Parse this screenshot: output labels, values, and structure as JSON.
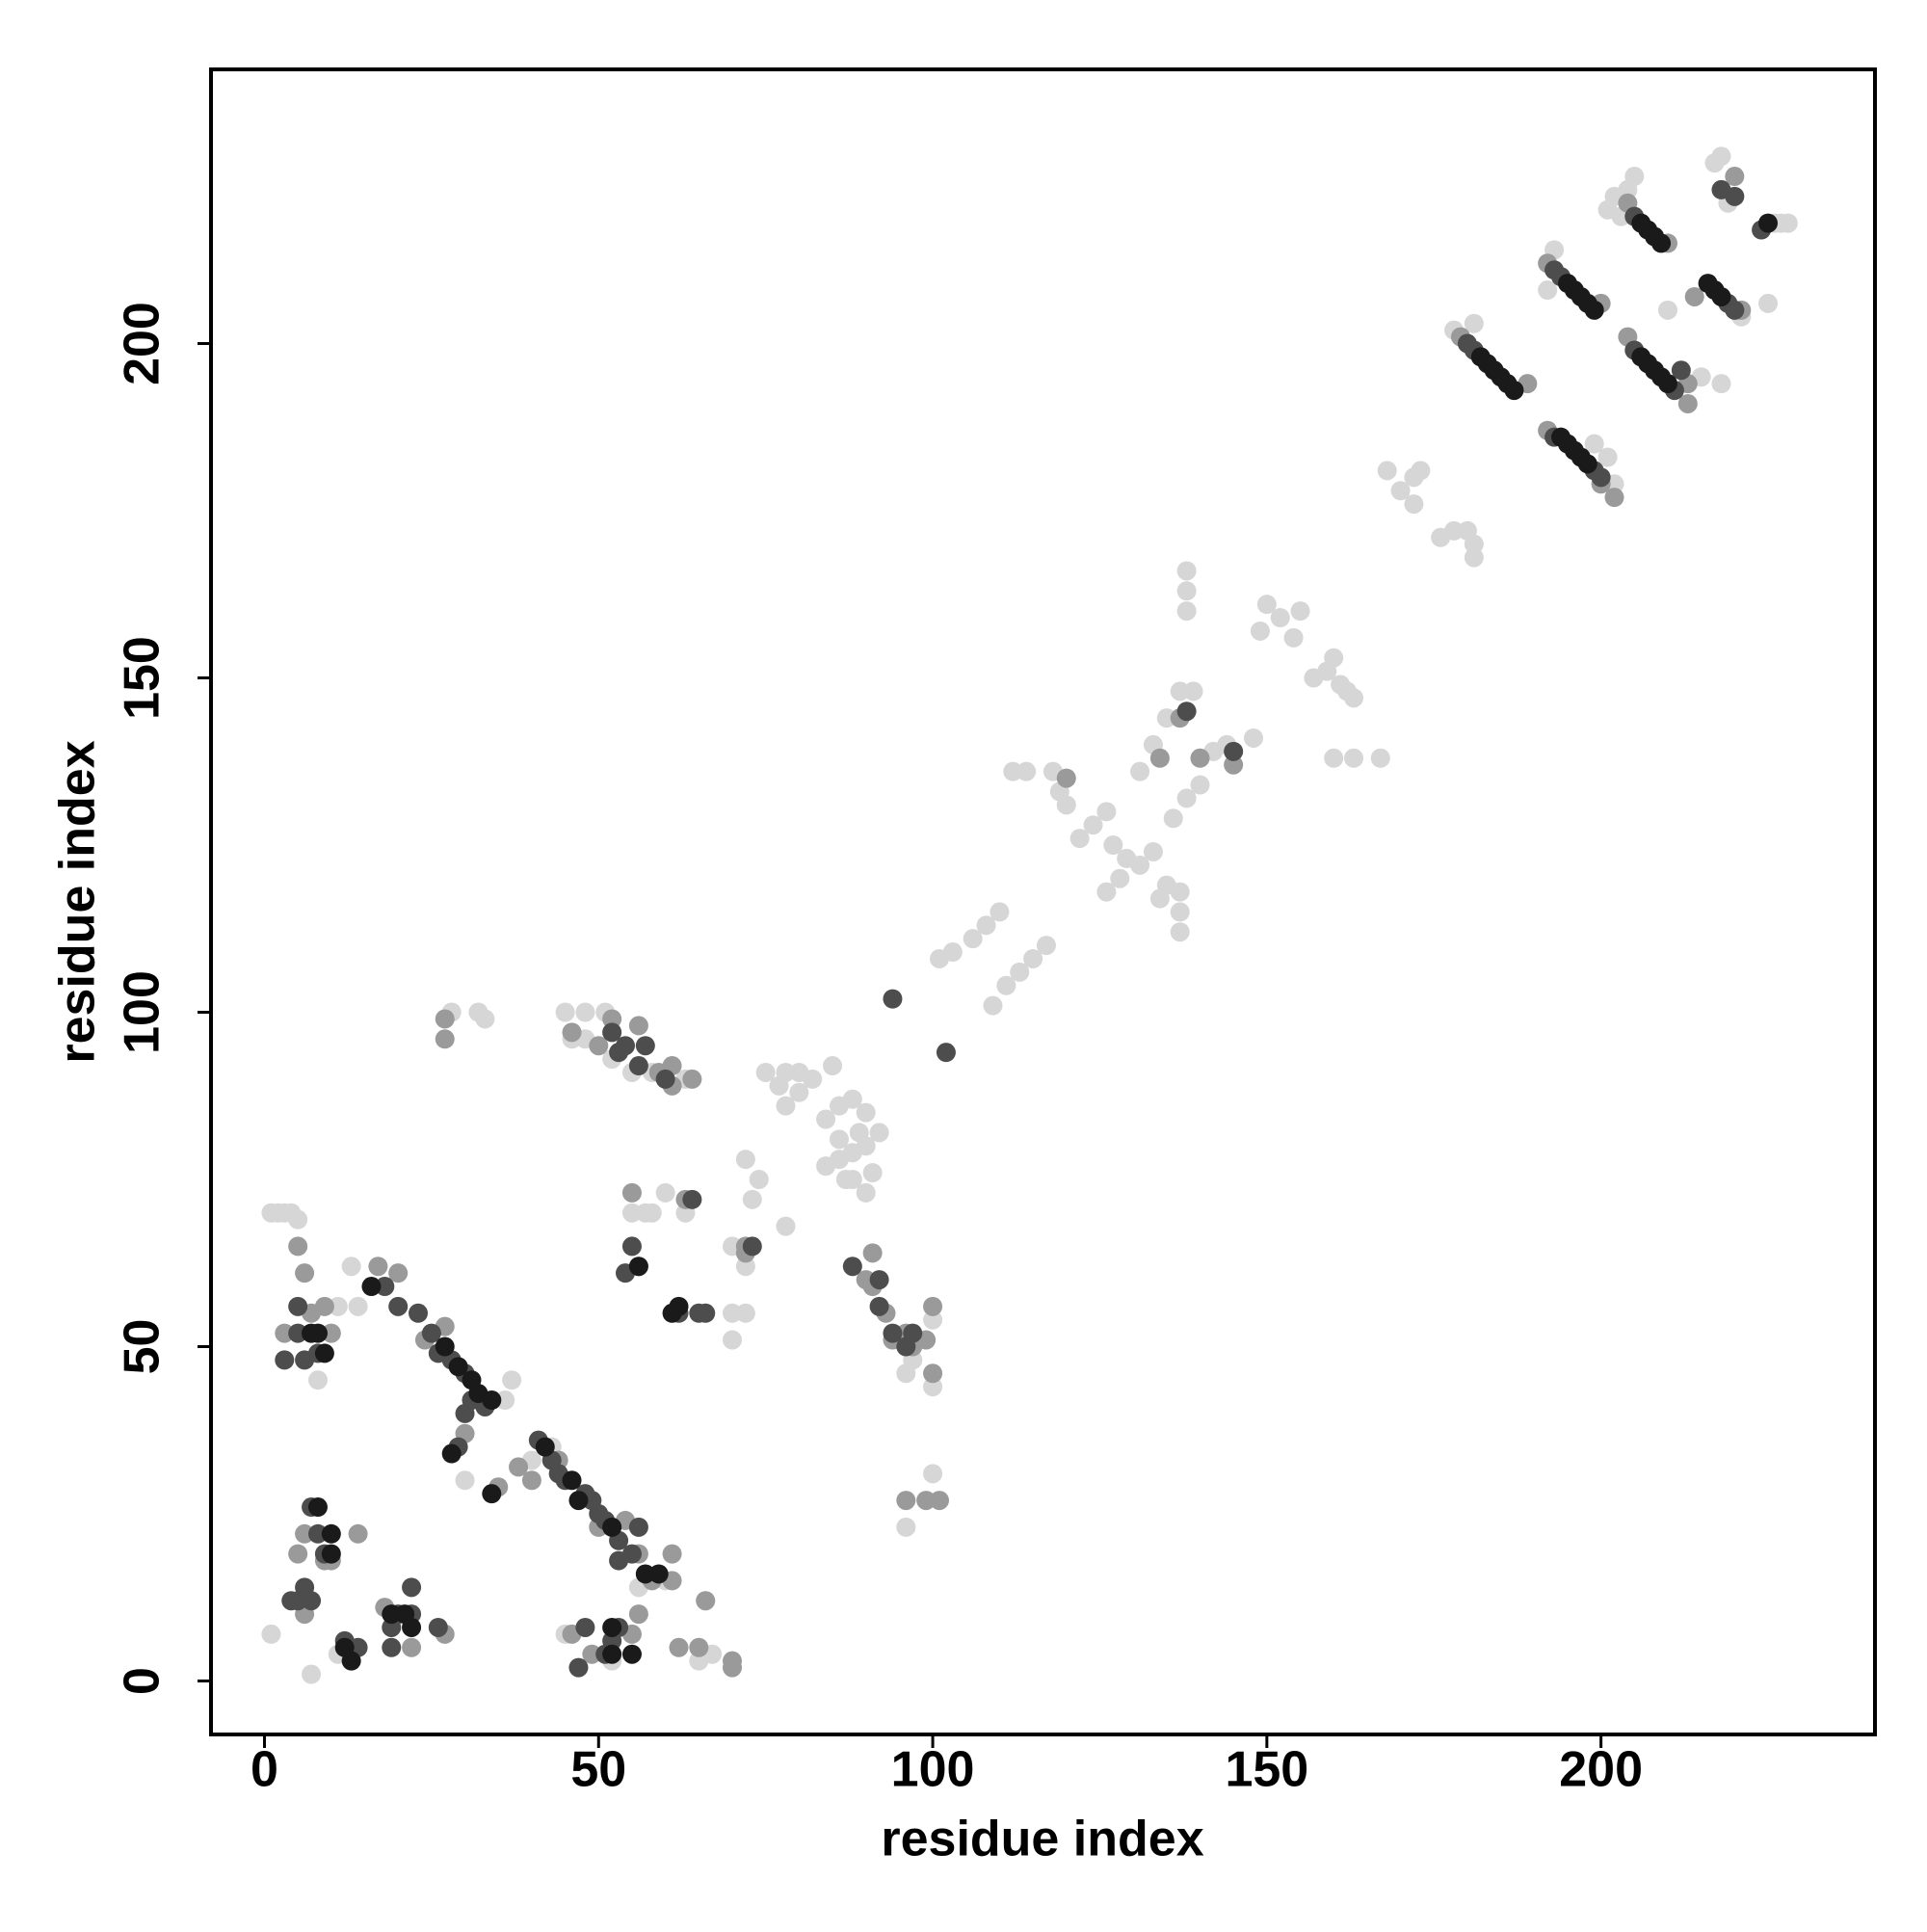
{
  "chart_data": {
    "type": "scatter",
    "x_label": "residue index",
    "y_label": "residue index",
    "xlim": [
      -8,
      241
    ],
    "ylim": [
      -8,
      241
    ],
    "xticks": [
      0,
      50,
      100,
      150,
      200
    ],
    "yticks": [
      0,
      50,
      100,
      150,
      200
    ],
    "grid": false,
    "series": [
      {
        "color": "#d6d6d6",
        "x": [
          1,
          7,
          1,
          2,
          3,
          4,
          5,
          13,
          14,
          11,
          8,
          11,
          30,
          36,
          37,
          40,
          43,
          45,
          52,
          56,
          60,
          57,
          58,
          65,
          67,
          66,
          70,
          70,
          72,
          72,
          72,
          73,
          75,
          77,
          78,
          80,
          82,
          85,
          80,
          78,
          84,
          86,
          88,
          90,
          84,
          86,
          88,
          88,
          90,
          87,
          86,
          89,
          90,
          91,
          92,
          74,
          78,
          70,
          63,
          60,
          55,
          48,
          48,
          51,
          52,
          28,
          32,
          33,
          45,
          46,
          55,
          58,
          63,
          96,
          97,
          100,
          96,
          100,
          100,
          101,
          103,
          106,
          108,
          110,
          109,
          111,
          113,
          115,
          117,
          112,
          114,
          118,
          119,
          120,
          122,
          124,
          126,
          127,
          129,
          131,
          133,
          135,
          137,
          137,
          137,
          134,
          126,
          128,
          131,
          133,
          135,
          137,
          139,
          136,
          138,
          140,
          138,
          138,
          138,
          142,
          144,
          148,
          149,
          150,
          152,
          154,
          155,
          157,
          159,
          160,
          161,
          162,
          163,
          160,
          163,
          167,
          168,
          170,
          172,
          173,
          172,
          176,
          178,
          180,
          181,
          181,
          178,
          181,
          192,
          193,
          201,
          202,
          203,
          204,
          205,
          217,
          218,
          219,
          226,
          227,
          228,
          225,
          221,
          218,
          215,
          210,
          199,
          201,
          202
        ],
        "y": [
          7,
          1,
          70,
          70,
          70,
          70,
          69,
          62,
          56,
          4,
          45,
          56,
          30,
          42,
          45,
          33,
          35,
          7,
          3,
          14,
          15,
          70,
          70,
          3,
          4,
          12,
          55,
          51,
          62,
          78,
          55,
          72,
          91,
          89,
          86,
          88,
          90,
          92,
          91,
          91,
          84,
          86,
          87,
          85,
          77,
          78,
          79,
          75,
          73,
          75,
          81,
          82,
          80,
          76,
          82,
          75,
          68,
          65,
          70,
          73,
          70,
          96,
          100,
          100,
          93,
          100,
          100,
          99,
          100,
          96,
          91,
          91,
          90,
          46,
          48,
          44,
          23,
          31,
          54,
          108,
          109,
          111,
          113,
          115,
          101,
          104,
          106,
          108,
          110,
          136,
          136,
          136,
          133,
          131,
          126,
          128,
          130,
          125,
          123,
          122,
          124,
          119,
          118,
          112,
          115,
          117,
          118,
          120,
          136,
          140,
          144,
          148,
          148,
          129,
          132,
          134,
          160,
          163,
          166,
          139,
          140,
          141,
          157,
          161,
          159,
          156,
          160,
          150,
          151,
          153,
          149,
          148,
          147,
          138,
          138,
          138,
          181,
          178,
          180,
          181,
          176,
          171,
          172,
          172,
          170,
          168,
          202,
          203,
          208,
          214,
          220,
          222,
          219,
          223,
          225,
          227,
          228,
          221,
          218,
          218,
          218,
          206,
          204,
          194,
          195,
          205,
          185,
          183,
          179
        ]
      },
      {
        "color": "#9a9a9a",
        "x": [
          5,
          6,
          7,
          3,
          9,
          10,
          6,
          5,
          10,
          14,
          9,
          6,
          18,
          22,
          27,
          24,
          27,
          20,
          17,
          30,
          35,
          38,
          40,
          44,
          50,
          54,
          56,
          58,
          61,
          61,
          62,
          65,
          66,
          46,
          49,
          55,
          56,
          70,
          70,
          27,
          27,
          46,
          50,
          52,
          56,
          59,
          61,
          61,
          64,
          55,
          56,
          63,
          72,
          72,
          91,
          90,
          91,
          93,
          94,
          96,
          97,
          100,
          99,
          100,
          96,
          99,
          101,
          120,
          140,
          145,
          137,
          134,
          179,
          189,
          192,
          200,
          204,
          210,
          204,
          213,
          214,
          221,
          220,
          213,
          202,
          192,
          200
        ],
        "y": [
          65,
          61,
          55,
          52,
          56,
          52,
          22,
          19,
          18,
          22,
          18,
          10,
          11,
          5,
          7,
          51,
          53,
          61,
          62,
          37,
          29,
          32,
          30,
          33,
          23,
          24,
          19,
          15,
          19,
          15,
          5,
          5,
          12,
          7,
          4,
          7,
          10,
          2,
          3,
          96,
          99,
          97,
          95,
          99,
          98,
          91,
          92,
          89,
          90,
          73,
          62,
          72,
          65,
          64,
          64,
          60,
          59,
          55,
          51,
          52,
          50,
          56,
          51,
          46,
          27,
          27,
          27,
          135,
          138,
          137,
          144,
          138,
          201,
          194,
          212,
          206,
          221,
          215,
          201,
          194,
          207,
          205,
          225,
          191,
          177,
          187,
          179
        ]
      },
      {
        "color": "#4d4d4d",
        "x": [
          5,
          6,
          3,
          5,
          8,
          7,
          8,
          9,
          5,
          6,
          7,
          4,
          12,
          14,
          19,
          20,
          22,
          26,
          19,
          22,
          18,
          20,
          23,
          25,
          26,
          28,
          30,
          31,
          33,
          30,
          29,
          41,
          43,
          44,
          45,
          48,
          49,
          50,
          51,
          53,
          55,
          56,
          53,
          47,
          48,
          51,
          52,
          53,
          55,
          54,
          62,
          65,
          66,
          94,
          102,
          94,
          96,
          97,
          54,
          57,
          52,
          180,
          181,
          193,
          194,
          205,
          205,
          211,
          193,
          199,
          200,
          219,
          220,
          218,
          220,
          224,
          212,
          88,
          92,
          92,
          53,
          56,
          60,
          64,
          73,
          145,
          138
        ],
        "y": [
          52,
          48,
          48,
          56,
          49,
          26,
          22,
          19,
          12,
          14,
          12,
          12,
          6,
          5,
          8,
          10,
          14,
          8,
          5,
          10,
          59,
          56,
          55,
          52,
          49,
          48,
          46,
          42,
          41,
          40,
          35,
          36,
          33,
          31,
          30,
          28,
          27,
          25,
          24,
          21,
          19,
          23,
          18,
          2,
          8,
          4,
          6,
          8,
          65,
          61,
          55,
          55,
          55,
          102,
          94,
          52,
          50,
          52,
          95,
          95,
          97,
          200,
          199,
          211,
          210,
          219,
          199,
          193,
          186,
          181,
          180,
          206,
          205,
          223,
          222,
          217,
          196,
          62,
          60,
          56,
          94,
          92,
          90,
          72,
          65,
          139,
          145
        ]
      },
      {
        "color": "#1a1a1a",
        "x": [
          7,
          8,
          9,
          8,
          10,
          10,
          12,
          13,
          19,
          21,
          22,
          16,
          27,
          29,
          31,
          32,
          34,
          28,
          34,
          42,
          46,
          47,
          52,
          57,
          59,
          52,
          55,
          52,
          56,
          61,
          62,
          182,
          183,
          184,
          185,
          186,
          187,
          195,
          196,
          197,
          198,
          199,
          206,
          207,
          208,
          209,
          206,
          207,
          208,
          209,
          210,
          194,
          195,
          196,
          197,
          198,
          216,
          217,
          218,
          225
        ],
        "y": [
          52,
          52,
          49,
          26,
          22,
          19,
          5,
          3,
          10,
          10,
          8,
          59,
          50,
          47,
          45,
          43,
          42,
          34,
          28,
          35,
          30,
          27,
          23,
          16,
          16,
          4,
          4,
          8,
          62,
          55,
          56,
          198,
          197,
          196,
          195,
          194,
          193,
          209,
          208,
          207,
          206,
          205,
          218,
          217,
          216,
          215,
          198,
          197,
          196,
          195,
          194,
          186,
          185,
          184,
          183,
          182,
          209,
          208,
          207,
          218
        ]
      }
    ]
  }
}
